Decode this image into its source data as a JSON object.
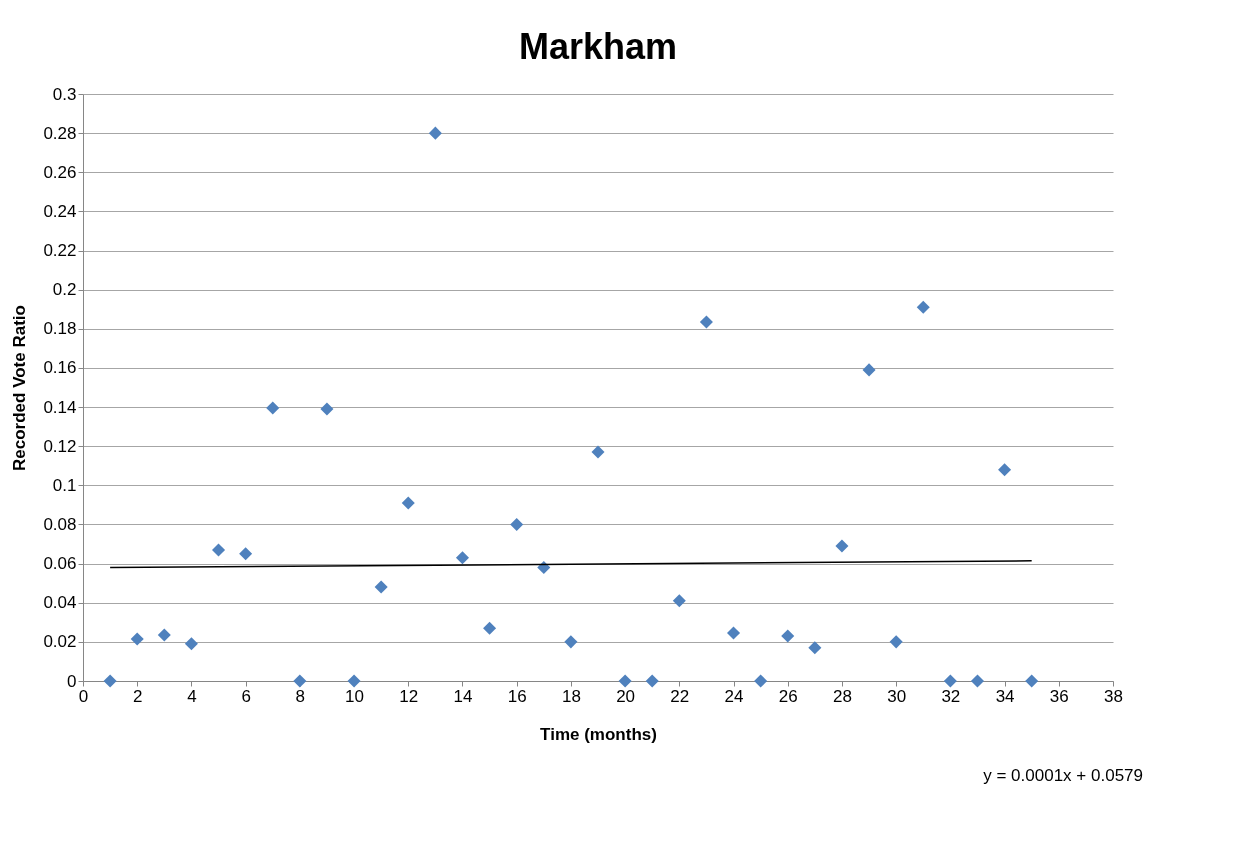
{
  "chart_data": {
    "type": "scatter",
    "title": "Markham",
    "xlabel": "Time (months)",
    "ylabel": "Recorded Vote Ratio",
    "annotations": [
      "y = 0.0001x + 0.0579"
    ],
    "x": [
      1,
      2,
      3,
      4,
      5,
      6,
      7,
      8,
      9,
      10,
      11,
      12,
      13,
      14,
      15,
      16,
      17,
      18,
      19,
      20,
      21,
      22,
      23,
      24,
      25,
      26,
      27,
      28,
      29,
      30,
      31,
      32,
      33,
      34,
      35
    ],
    "series": [
      {
        "color": "#4f81bd",
        "marker": "diamond",
        "values": [
          0,
          0.0215,
          0.0235,
          0.019,
          0.067,
          0.065,
          0.1395,
          0,
          0.139,
          0,
          0.048,
          0.091,
          0.28,
          0.063,
          0.027,
          0.08,
          0.058,
          0.02,
          0.117,
          0,
          0,
          0.041,
          0.1835,
          0.0245,
          0,
          0.023,
          0.017,
          0.069,
          0.159,
          0.02,
          0.191,
          0,
          0,
          0.108,
          0
        ]
      },
      {
        "type": "line",
        "color": "#000000",
        "marker": "none",
        "x": [
          1,
          35
        ],
        "values": [
          0.058,
          0.0614
        ]
      }
    ],
    "xlim": [
      0,
      38
    ],
    "xticks": [
      0,
      2,
      4,
      6,
      8,
      10,
      12,
      14,
      16,
      18,
      20,
      22,
      24,
      26,
      28,
      30,
      32,
      34,
      36,
      38
    ],
    "ylim": [
      0,
      0.3
    ],
    "yticks": [
      0,
      0.02,
      0.04,
      0.06,
      0.08,
      0.1,
      0.12,
      0.14,
      0.16,
      0.18,
      0.2,
      0.22,
      0.24,
      0.26,
      0.28,
      0.3
    ],
    "grid": "y"
  }
}
